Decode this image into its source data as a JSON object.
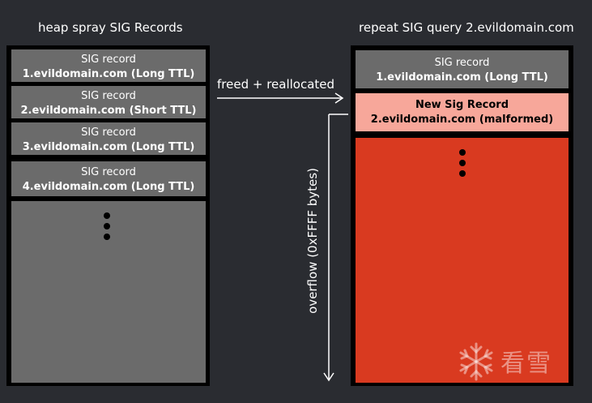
{
  "left": {
    "title": "heap spray SIG Records",
    "records": [
      {
        "line1": "SIG record",
        "line2": "1.evildomain.com (Long TTL)"
      },
      {
        "line1": "SIG record",
        "line2": "2.evildomain.com (Short TTL)"
      },
      {
        "line1": "SIG record",
        "line2": "3.evildomain.com (Long TTL)"
      },
      {
        "line1": "SIG record",
        "line2": "4.evildomain.com (Long TTL)"
      }
    ]
  },
  "right": {
    "title": "repeat SIG query 2.evildomain.com",
    "records": [
      {
        "line1": "SIG record",
        "line2": "1.evildomain.com (Long TTL)"
      },
      {
        "line1": "New Sig Record",
        "line2": "2.evildomain.com (malformed)"
      }
    ]
  },
  "arrows": {
    "reallocate_label": "freed + reallocated",
    "overflow_label": "overflow (0xFFFF bytes)"
  },
  "watermark": {
    "text": "看雪"
  },
  "colors": {
    "background": "#2a2c31",
    "record_gray": "#6b6b6b",
    "new_record": "#f7a79a",
    "overflow_red": "#d93a20"
  }
}
